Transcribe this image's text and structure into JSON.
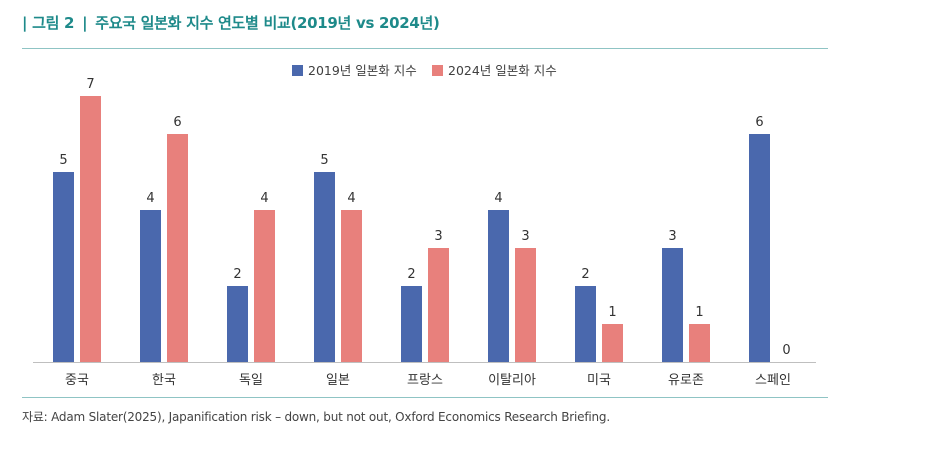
{
  "header": {
    "figure_label": "그림 2",
    "title": "주요국 일본화 지수 연도별 비교(2019년 vs 2024년)"
  },
  "source": "자료: Adam Slater(2025), Japanification risk – down, but not out, Oxford Economics Research Briefing.",
  "colors": {
    "accent": "#1e8a8a",
    "series_2019": "#4a68ad",
    "series_2024": "#e8807c"
  },
  "chart_data": {
    "type": "bar",
    "title": "주요국 일본화 지수 연도별 비교(2019년 vs 2024년)",
    "xlabel": "",
    "ylabel": "",
    "ylim": [
      0,
      7
    ],
    "grid": false,
    "legend_position": "top-center",
    "categories": [
      "중국",
      "한국",
      "독일",
      "일본",
      "프랑스",
      "이탈리아",
      "미국",
      "유로존",
      "스페인"
    ],
    "series": [
      {
        "name": "2019년 일본화 지수",
        "color": "#4a68ad",
        "values": [
          5,
          4,
          2,
          5,
          2,
          4,
          2,
          3,
          6
        ]
      },
      {
        "name": "2024년 일본화 지수",
        "color": "#e8807c",
        "values": [
          7,
          6,
          4,
          4,
          3,
          3,
          1,
          1,
          0
        ]
      }
    ]
  }
}
